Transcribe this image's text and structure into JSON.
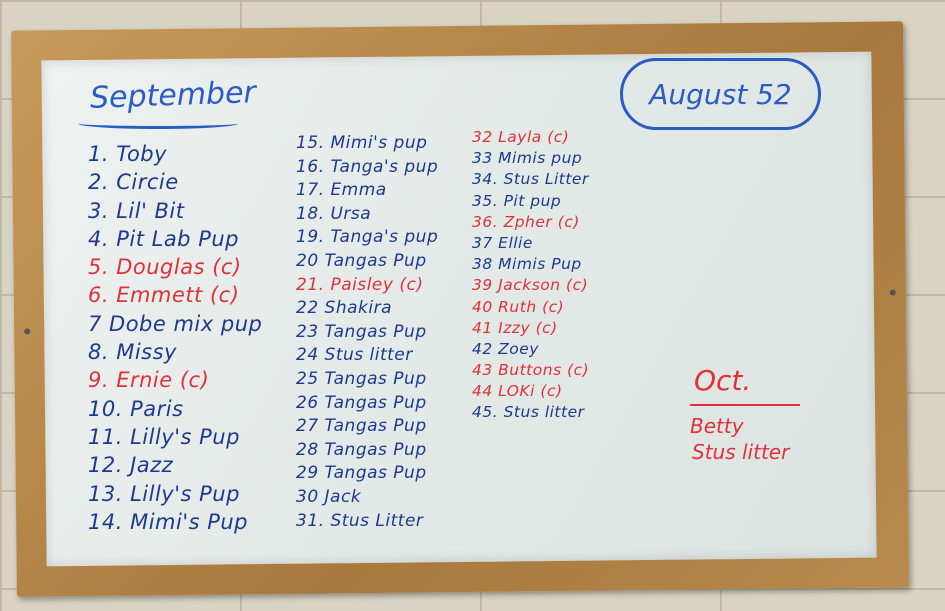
{
  "board": {
    "title": "September",
    "cloud_label": "August 52",
    "columns": [
      [
        {
          "text": "1. Toby",
          "color": "blue"
        },
        {
          "text": "2. Circie",
          "color": "blue"
        },
        {
          "text": "3. Lil' Bit",
          "color": "blue"
        },
        {
          "text": "4. Pit Lab Pup",
          "color": "blue"
        },
        {
          "text": "5. Douglas (c)",
          "color": "red"
        },
        {
          "text": "6. Emmett (c)",
          "color": "red"
        },
        {
          "text": "7 Dobe mix pup",
          "color": "blue"
        },
        {
          "text": "8. Missy",
          "color": "blue"
        },
        {
          "text": "9. Ernie (c)",
          "color": "red"
        },
        {
          "text": "10. Paris",
          "color": "blue"
        },
        {
          "text": "11. Lilly's Pup",
          "color": "blue"
        },
        {
          "text": "12. Jazz",
          "color": "blue"
        },
        {
          "text": "13. Lilly's Pup",
          "color": "blue"
        },
        {
          "text": "14. Mimi's Pup",
          "color": "blue"
        }
      ],
      [
        {
          "text": "15. Mimi's pup",
          "color": "blue"
        },
        {
          "text": "16. Tanga's pup",
          "color": "blue"
        },
        {
          "text": "17. Emma",
          "color": "blue"
        },
        {
          "text": "18. Ursa",
          "color": "blue"
        },
        {
          "text": "19. Tanga's pup",
          "color": "blue"
        },
        {
          "text": "20 Tangas Pup",
          "color": "blue"
        },
        {
          "text": "21. Paisley (c)",
          "color": "red"
        },
        {
          "text": "22 Shakira",
          "color": "blue"
        },
        {
          "text": "23 Tangas Pup",
          "color": "blue"
        },
        {
          "text": "24 Stus litter",
          "color": "blue"
        },
        {
          "text": "25 Tangas Pup",
          "color": "blue"
        },
        {
          "text": "26 Tangas Pup",
          "color": "blue"
        },
        {
          "text": "27 Tangas Pup",
          "color": "blue"
        },
        {
          "text": "28 Tangas Pup",
          "color": "blue"
        },
        {
          "text": "29 Tangas Pup",
          "color": "blue"
        },
        {
          "text": "30 Jack",
          "color": "blue"
        },
        {
          "text": "31. Stus Litter",
          "color": "blue"
        }
      ],
      [
        {
          "text": "32 Layla (c)",
          "color": "red"
        },
        {
          "text": "33 Mimis pup",
          "color": "blue"
        },
        {
          "text": "34. Stus Litter",
          "color": "blue"
        },
        {
          "text": "35. Pit pup",
          "color": "blue"
        },
        {
          "text": "36. Zpher (c)",
          "color": "red"
        },
        {
          "text": "37 Ellie",
          "color": "blue"
        },
        {
          "text": "38 Mimis Pup",
          "color": "blue"
        },
        {
          "text": "39 Jackson (c)",
          "color": "red"
        },
        {
          "text": "40 Ruth (c)",
          "color": "red"
        },
        {
          "text": "41 Izzy (c)",
          "color": "red"
        },
        {
          "text": "42 Zoey",
          "color": "blue"
        },
        {
          "text": "43 Buttons (c)",
          "color": "red"
        },
        {
          "text": "44 LOKi (c)",
          "color": "red"
        },
        {
          "text": "45. Stus litter",
          "color": "blue"
        }
      ]
    ],
    "october": {
      "heading": "Oct.",
      "items": [
        "Betty",
        "Stus litter"
      ]
    }
  },
  "colors": {
    "blue_marker": "#1c3a8f",
    "red_marker": "#e0313a",
    "frame": "#b88a4c",
    "board": "#e6ebe9"
  }
}
